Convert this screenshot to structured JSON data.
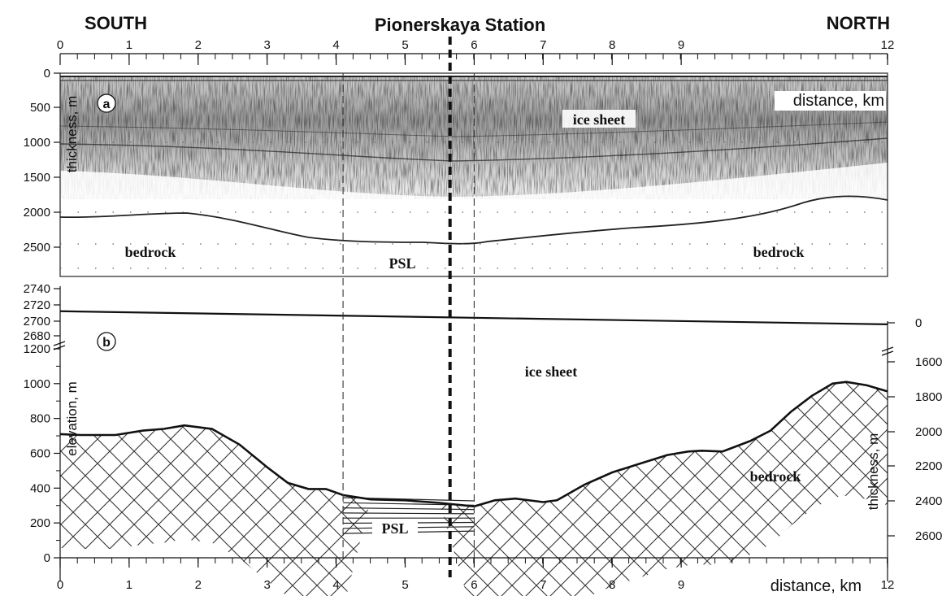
{
  "header": {
    "left": "SOUTH",
    "center": "Pionerskaya Station",
    "right": "NORTH"
  },
  "top_axis": {
    "ticks": [
      "0",
      "1",
      "2",
      "3",
      "4",
      "5",
      "6",
      "7",
      "8",
      "9",
      "12"
    ]
  },
  "panel_a": {
    "letter": "a",
    "ylabel": "thickness, m",
    "yticks": [
      "0",
      "500",
      "1000",
      "1500",
      "2000",
      "2500"
    ],
    "distance_label": "distance, km",
    "labels": {
      "ice_sheet": "ice sheet",
      "bedrock_left": "bedrock",
      "psl": "PSL",
      "bedrock_right": "bedrock"
    }
  },
  "panel_b": {
    "letter": "b",
    "ylabel": "elevation, m",
    "yticks_upper": [
      "2740",
      "2720",
      "2700",
      "2680"
    ],
    "yticks_lower": [
      "1200",
      "1000",
      "800",
      "600",
      "400",
      "200",
      "0"
    ],
    "right_ylabel": "thickness, m",
    "right_ticks": [
      "0",
      "1600",
      "1800",
      "2000",
      "2200",
      "2400",
      "2600"
    ],
    "labels": {
      "ice_sheet": "ice sheet",
      "bedrock": "bedrock",
      "psl": "PSL"
    }
  },
  "bottom_axis": {
    "ticks": [
      "0",
      "1",
      "2",
      "3",
      "4",
      "5",
      "6",
      "7",
      "8",
      "9",
      "12"
    ],
    "label": "distance, km"
  },
  "chart_data": {
    "type": "line",
    "x_unit": "km",
    "xlim": [
      0,
      12
    ],
    "markers": {
      "psl_boundary_south_km": 4.1,
      "psl_boundary_north_km": 6.0,
      "station_km": 5.65
    },
    "bed_elevation": {
      "x": [
        0,
        0.3,
        0.8,
        1.2,
        1.5,
        1.8,
        2.2,
        2.6,
        3.0,
        3.3,
        3.6,
        3.85,
        4.1,
        4.5,
        5.0,
        5.5,
        6.0,
        6.3,
        6.6,
        7.0,
        7.2,
        7.6,
        8.0,
        8.4,
        8.8,
        9.1,
        9.3,
        9.6,
        10.0,
        10.3,
        10.6,
        10.9,
        11.2,
        11.4,
        11.7,
        12.0
      ],
      "y": [
        710,
        705,
        705,
        730,
        740,
        760,
        740,
        650,
        520,
        430,
        395,
        395,
        360,
        335,
        330,
        315,
        295,
        330,
        340,
        320,
        330,
        420,
        490,
        540,
        590,
        610,
        615,
        610,
        670,
        730,
        840,
        930,
        1000,
        1010,
        990,
        955
      ]
    },
    "surface_elevation": {
      "x": [
        0,
        12
      ],
      "y": [
        2715,
        2698
      ]
    }
  }
}
